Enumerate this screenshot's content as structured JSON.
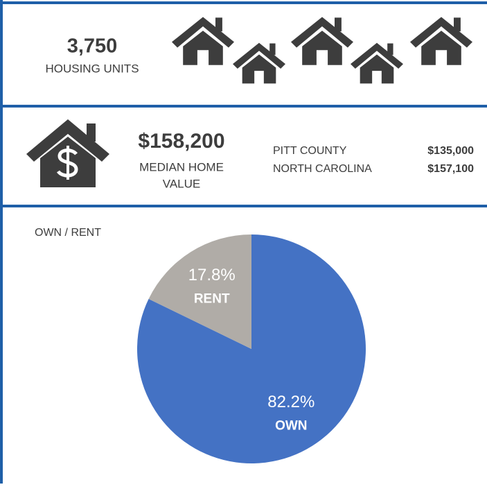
{
  "housing": {
    "count": "3,750",
    "label": "HOUSING UNITS"
  },
  "home_value": {
    "value": "$158,200",
    "label_line1": "MEDIAN HOME",
    "label_line2": "VALUE",
    "comparisons": [
      {
        "name": "PITT COUNTY",
        "value": "$135,000"
      },
      {
        "name": "NORTH CAROLINA",
        "value": "$157,100"
      }
    ]
  },
  "chart_data": {
    "type": "pie",
    "title": "OWN / RENT",
    "categories": [
      "OWN",
      "RENT"
    ],
    "values": [
      82.2,
      17.8
    ],
    "value_labels": [
      "82.2%",
      "17.8%"
    ],
    "colors": [
      "#4472c4",
      "#b0aca7"
    ]
  }
}
